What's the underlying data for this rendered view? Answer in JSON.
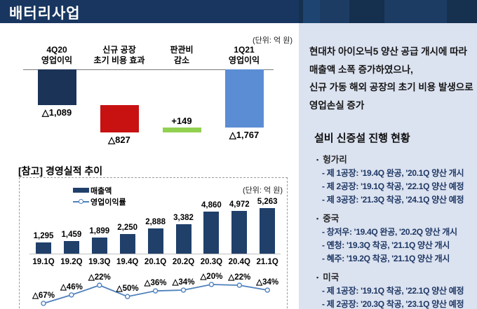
{
  "header": {
    "title": "배터리사업",
    "bar_color": "#183660",
    "deco_bands": [
      {
        "w": 6,
        "color": "#16304f"
      },
      {
        "w": 24,
        "color": "#1e4571"
      },
      {
        "w": 42,
        "color": "#1d3c64"
      },
      {
        "w": 50,
        "color": "#152f4e"
      },
      {
        "w": 89,
        "color": "#1d3c64"
      },
      {
        "w": 43,
        "color": "#16304f"
      }
    ]
  },
  "chart_data": [
    {
      "type": "bar",
      "subtype": "waterfall",
      "title": "",
      "unit": "(단위: 억 원)",
      "categories": [
        "4Q20 영업이익",
        "신규 공장 초기 비용 효과",
        "판관비 감소",
        "1Q21 영업이익"
      ],
      "category_lines": [
        [
          "4Q20",
          "영업이익"
        ],
        [
          "신규 공장",
          "초기 비용 효과"
        ],
        [
          "판관비",
          "감소"
        ],
        [
          "1Q21",
          "영업이익"
        ]
      ],
      "values": [
        -1089,
        -827,
        149,
        -1767
      ],
      "labels": [
        "△1,089",
        "△827",
        "+149",
        "△1,767"
      ],
      "roles": [
        "total",
        "delta",
        "delta",
        "total"
      ],
      "colors": [
        "#1b3356",
        "#c81111",
        "#92d050",
        "#5b8dd4"
      ]
    },
    {
      "type": "bar+line",
      "title": "[참고] 경영실적 추이",
      "unit": "(단위: 억 원)",
      "categories": [
        "19.1Q",
        "19.2Q",
        "19.3Q",
        "19.4Q",
        "20.1Q",
        "20.2Q",
        "20.3Q",
        "20.4Q",
        "21.1Q"
      ],
      "series": [
        {
          "name": "매출액",
          "type": "bar",
          "color": "#20406a",
          "values": [
            1295,
            1459,
            1899,
            2250,
            2888,
            3382,
            4860,
            4972,
            5263
          ],
          "labels": [
            "1,295",
            "1,459",
            "1,899",
            "2,250",
            "2,888",
            "3,382",
            "4,860",
            "4,972",
            "5,263"
          ]
        },
        {
          "name": "영업이익률",
          "type": "line",
          "color": "#4f81bd",
          "values": [
            -67,
            -46,
            -22,
            -50,
            -36,
            -34,
            -20,
            -22,
            -34
          ],
          "labels": [
            "△67%",
            "△46%",
            "△22%",
            "△50%",
            "△36%",
            "△34%",
            "△20%",
            "△22%",
            "△34%"
          ]
        }
      ],
      "legend_position": "top-left"
    }
  ],
  "right_panel": {
    "summary_lines": [
      "현대차 아이오닉5 양산 공급 개시에 따라",
      "매출액 소폭 증가하였으나,",
      "신규 가동 해외 공장의 초기 비용 발생으로",
      "영업손실 증가"
    ],
    "section_title": "설비 신증설 진행 현황",
    "bullet": "▪",
    "groups": [
      {
        "name": "헝가리",
        "items": [
          "- 제 1공장: '19.4Q 완공, '20.1Q 양산 개시",
          "- 제 2공장: '19.1Q 착공, '22.1Q 양산 예정",
          "- 제 3공장: '21.3Q 착공, '24.1Q 양산 예정"
        ]
      },
      {
        "name": "중국",
        "items": [
          "- 창저우: '19.4Q 완공, '20.2Q 양산 개시",
          "- 옌청: '19.3Q 착공, '21.1Q 양산 개시",
          "- 혜주: '19.2Q 착공, '21.1Q 양산 개시"
        ]
      },
      {
        "name": "미국",
        "items": [
          "- 제 1공장: '19.1Q 착공, '22.1Q 양산 예정",
          "- 제 2공장: '20.3Q 착공, '23.1Q 양산 예정"
        ]
      }
    ]
  }
}
